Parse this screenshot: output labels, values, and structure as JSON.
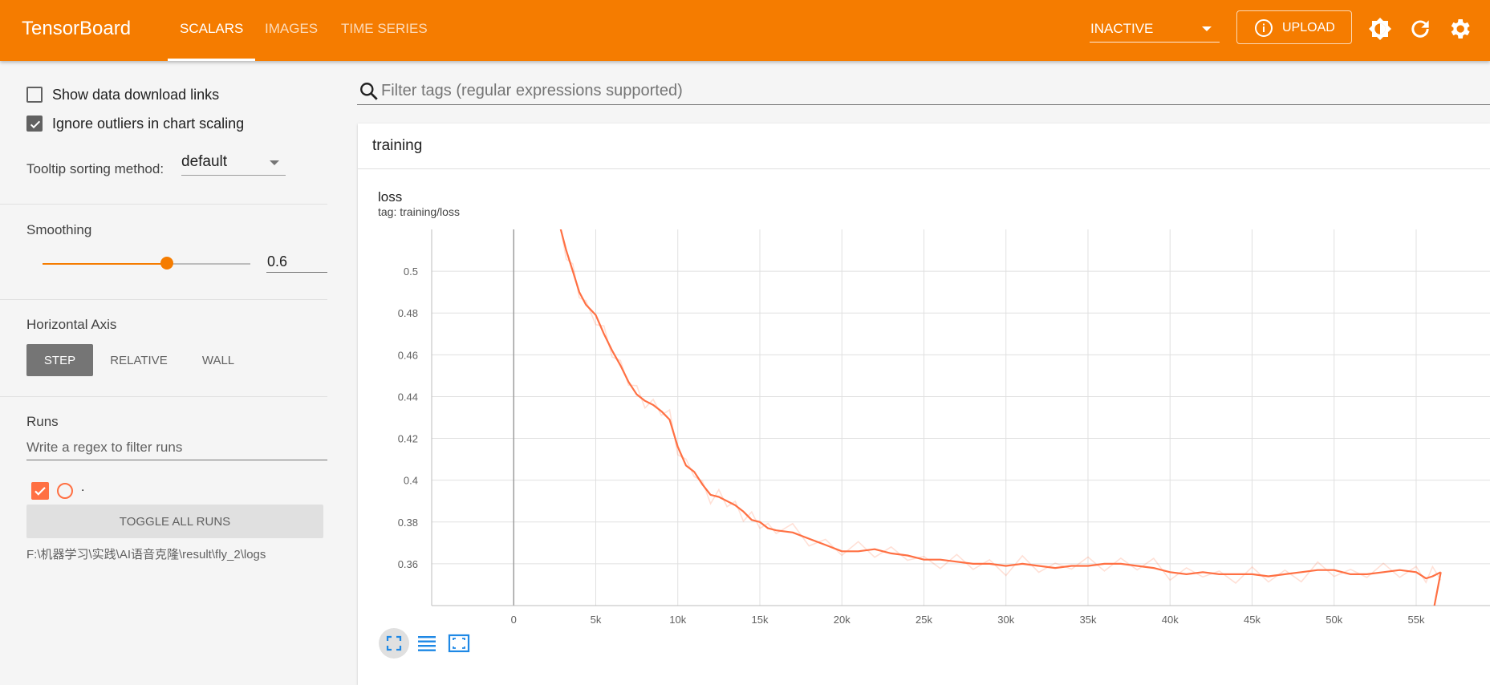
{
  "header": {
    "brand": "TensorBoard",
    "tabs": [
      {
        "label": "SCALARS",
        "active": true
      },
      {
        "label": "IMAGES",
        "active": false
      },
      {
        "label": "TIME SERIES",
        "active": false
      }
    ],
    "run_status": "INACTIVE",
    "upload_label": "UPLOAD"
  },
  "sidebar": {
    "show_download_label": "Show data download links",
    "show_download_checked": false,
    "ignore_outliers_label": "Ignore outliers in chart scaling",
    "ignore_outliers_checked": true,
    "tooltip_label": "Tooltip sorting method:",
    "tooltip_value": "default",
    "smoothing_label": "Smoothing",
    "smoothing_value": "0.6",
    "smoothing_fraction": 0.6,
    "haxis_label": "Horizontal Axis",
    "haxis_options": [
      "STEP",
      "RELATIVE",
      "WALL"
    ],
    "runs_label": "Runs",
    "runs_filter_placeholder": "Write a regex to filter runs",
    "run_name": ".",
    "toggle_label": "TOGGLE ALL RUNS",
    "logdir": "F:\\机器学习\\实践\\AI语音克隆\\result\\fly_2\\logs"
  },
  "main": {
    "filter_placeholder": "Filter tags (regular expressions supported)",
    "group_name": "training",
    "chart_title": "loss",
    "chart_tag": "tag: training/loss"
  },
  "colors": {
    "accent": "#f57c00",
    "run": "#ff7043"
  },
  "chart_data": {
    "type": "line",
    "title": "loss",
    "subtitle": "tag: training/loss",
    "xlim": [
      -5000,
      59500
    ],
    "ylim": [
      0.34,
      0.52
    ],
    "xticks": [
      0,
      5000,
      10000,
      15000,
      20000,
      25000,
      30000,
      35000,
      40000,
      45000,
      50000,
      55000
    ],
    "xtick_labels": [
      "0",
      "5k",
      "10k",
      "15k",
      "20k",
      "25k",
      "30k",
      "35k",
      "40k",
      "45k",
      "50k",
      "55k"
    ],
    "yticks": [
      0.36,
      0.38,
      0.4,
      0.42,
      0.44,
      0.46,
      0.48,
      0.5
    ],
    "ytick_labels": [
      "0.36",
      "0.38",
      "0.4",
      "0.42",
      "0.44",
      "0.46",
      "0.48",
      "0.5"
    ],
    "grid": true,
    "series": [
      {
        "smoothing": 0.6,
        "x": [
          2800,
          3200,
          3600,
          4000,
          4400,
          5000,
          5500,
          6000,
          6500,
          7000,
          7500,
          8000,
          8500,
          9000,
          9500,
          10000,
          10500,
          11000,
          11500,
          12000,
          12500,
          13000,
          13500,
          14000,
          14500,
          15000,
          15500,
          16000,
          17000,
          18000,
          19000,
          20000,
          21000,
          22000,
          23000,
          24000,
          25000,
          26000,
          27000,
          28000,
          29000,
          30000,
          31000,
          32000,
          33000,
          34000,
          35000,
          36000,
          37000,
          38000,
          39000,
          40000,
          41000,
          42000,
          43000,
          44000,
          45000,
          46000,
          47000,
          48000,
          49000,
          50000,
          51000,
          52000,
          53000,
          54000,
          55000,
          55600,
          56000,
          56500
        ],
        "y": [
          0.522,
          0.51,
          0.5,
          0.49,
          0.484,
          0.479,
          0.47,
          0.462,
          0.455,
          0.447,
          0.441,
          0.438,
          0.436,
          0.433,
          0.429,
          0.416,
          0.407,
          0.404,
          0.398,
          0.393,
          0.392,
          0.39,
          0.388,
          0.385,
          0.381,
          0.38,
          0.377,
          0.376,
          0.375,
          0.372,
          0.369,
          0.366,
          0.366,
          0.367,
          0.365,
          0.364,
          0.362,
          0.362,
          0.361,
          0.36,
          0.36,
          0.359,
          0.36,
          0.359,
          0.358,
          0.359,
          0.359,
          0.36,
          0.36,
          0.359,
          0.358,
          0.356,
          0.355,
          0.356,
          0.355,
          0.355,
          0.355,
          0.354,
          0.355,
          0.356,
          0.357,
          0.357,
          0.355,
          0.355,
          0.356,
          0.357,
          0.356,
          0.353,
          0.354,
          0.356
        ]
      }
    ]
  }
}
